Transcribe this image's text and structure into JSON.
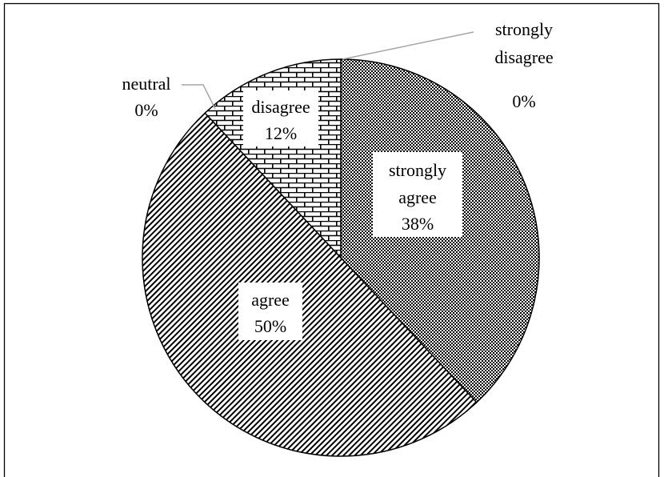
{
  "chart_data": {
    "type": "pie",
    "title": "",
    "slices": [
      {
        "category": "strongly agree",
        "value": 38,
        "label": "38%",
        "pattern": "dense-check"
      },
      {
        "category": "agree",
        "value": 50,
        "label": "50%",
        "pattern": "diagonal-stripes"
      },
      {
        "category": "neutral",
        "value": 0,
        "label": "0%",
        "pattern": "none"
      },
      {
        "category": "disagree",
        "value": 12,
        "label": "12%",
        "pattern": "brick"
      },
      {
        "category": "strongly disagree",
        "value": 0,
        "label": "0%",
        "pattern": "none"
      }
    ],
    "label_lines": {
      "strongly_agree": [
        "strongly",
        "agree",
        "38%"
      ],
      "agree": [
        "agree",
        "50%"
      ],
      "neutral": [
        "neutral",
        "0%"
      ],
      "disagree": [
        "disagree",
        "12%"
      ],
      "strongly_disagree": [
        "strongly",
        "disagree",
        "0%"
      ]
    },
    "legend": "none",
    "colors": {
      "fill": "#ffffff",
      "ink": "#000000",
      "leader": "#a6a6a6"
    }
  }
}
